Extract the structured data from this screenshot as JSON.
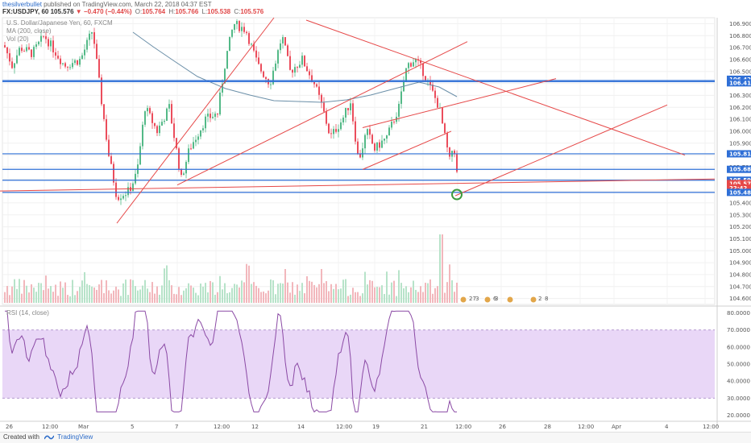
{
  "header": {
    "author": "thesilverbullet",
    "published": "published on TradingView.com, March 22, 2018 04:37 EST",
    "symbol": "FX:USDJPY, 60",
    "last": "105.576",
    "change": "▼ −0.470 (−0.44%)",
    "open_label": "O:",
    "open": "105.764",
    "high_label": "H:",
    "high": "105.766",
    "low_label": "L:",
    "low": "105.538",
    "close_label": "C:",
    "close": "105.576"
  },
  "legend": {
    "title": "U.S. Dollar/Japanese Yen, 60, FXCM",
    "ma": "MA (200, close)",
    "vol": "Vol (20)"
  },
  "price_axis": {
    "ticks": [
      "106.900",
      "106.800",
      "106.700",
      "106.600",
      "106.500",
      "106.400",
      "106.300",
      "106.200",
      "106.100",
      "106.000",
      "105.900",
      "105.800",
      "105.700",
      "105.600",
      "105.500",
      "105.400",
      "105.300",
      "105.200",
      "105.100",
      "105.000",
      "104.900",
      "104.800",
      "104.700",
      "104.600"
    ],
    "tags": [
      {
        "text": "106.424",
        "color": "#2f6fd6"
      },
      {
        "text": "106.415",
        "color": "#2f6fd6"
      },
      {
        "text": "105.811",
        "color": "#2f6fd6"
      },
      {
        "text": "105.681",
        "color": "#2f6fd6"
      },
      {
        "text": "105.590",
        "color": "#2f6fd6"
      },
      {
        "text": "105.576",
        "color": "#e64848"
      },
      {
        "text": "22:42",
        "color": "#e64848"
      },
      {
        "text": "105.488",
        "color": "#2f6fd6"
      }
    ]
  },
  "rsi": {
    "label": "RSI (14, close)",
    "ticks": [
      "80.0000",
      "70.0000",
      "60.0000",
      "50.0000",
      "40.0000",
      "30.0000",
      "20.0000"
    ]
  },
  "time_axis": {
    "labels": [
      "26",
      "12:00",
      "Mar",
      "5",
      "7",
      "12:00",
      "12",
      "14",
      "12:00",
      "19",
      "21",
      "12:00",
      "26",
      "28",
      "12:00",
      "Apr",
      "4",
      "12:00"
    ]
  },
  "events": [
    "27",
    "3",
    "6",
    "3",
    "2",
    "8"
  ],
  "footer": {
    "created": "Created with",
    "brand": "TradingView"
  },
  "colors": {
    "support_line": "#2f6fd6",
    "trend_line": "#e64848",
    "bull_candle": "#53b987",
    "bear_candle": "#eb4d5c",
    "ma_line": "#6b8fa8",
    "rsi_line": "#8b4aa5",
    "rsi_band": "#e9d7f7"
  }
}
